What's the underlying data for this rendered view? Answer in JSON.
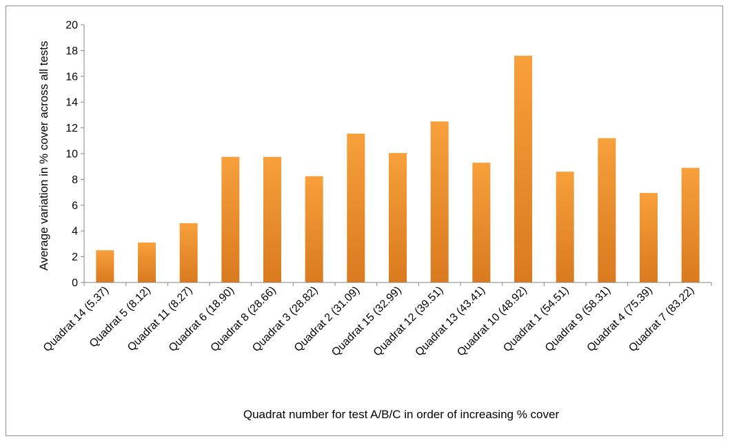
{
  "chart_data": {
    "type": "bar",
    "title": "",
    "xlabel": "Quadrat number for test A/B/C in order of increasing % cover",
    "ylabel": "Average variation in % cover across all tests",
    "ylim": [
      0,
      20
    ],
    "yticks": [
      0,
      2,
      4,
      6,
      8,
      10,
      12,
      14,
      16,
      18,
      20
    ],
    "grid": false,
    "legend": "none",
    "bar_color": "#f28e2b",
    "bar_color_top": "#f7a03c",
    "bar_color_bottom": "#d97a1e",
    "categories": [
      "Quadrat 14 (5.37)",
      "Quadrat 5 (8.12)",
      "Quadrat 11 (8.27)",
      "Quadrat 6 (18.90)",
      "Quadrat 8 (28.66)",
      "Quadrat 3 (28.82)",
      "Quadrat 2 (31.09)",
      "Quadrat 15 (32.99)",
      "Quadrat 12 (39.51)",
      "Quadrat 13 (43.41)",
      "Quadrat 10 (48.92)",
      "Quadrat 1 (54.51)",
      "Quadrat 9 (58.31)",
      "Quadrat 4 (75.39)",
      "Quadrat 7 (83.22)"
    ],
    "values": [
      2.5,
      3.1,
      4.6,
      9.75,
      9.75,
      8.25,
      11.55,
      10.05,
      12.5,
      9.3,
      17.6,
      8.6,
      11.2,
      6.95,
      8.9
    ]
  }
}
